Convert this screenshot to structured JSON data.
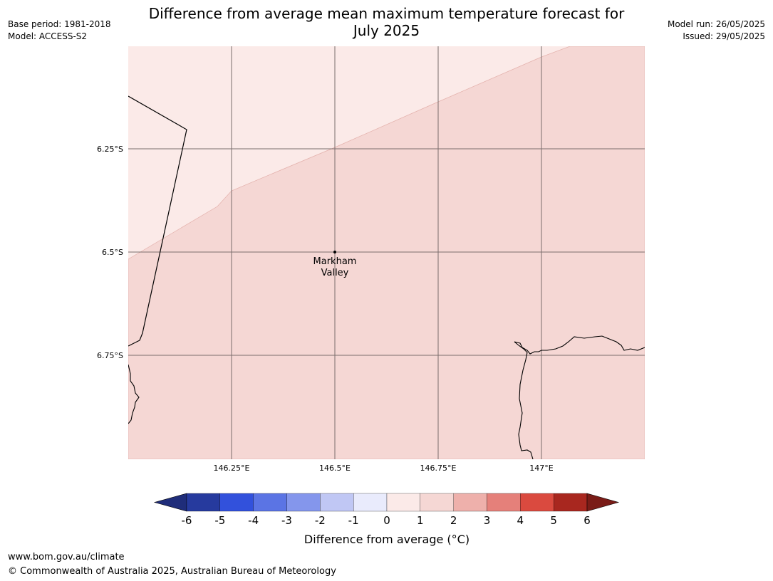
{
  "header": {
    "title_line1": "Difference from average mean maximum temperature forecast for",
    "title_line2": "July 2025",
    "base_period": "Base period: 1981-2018",
    "model": "Model: ACCESS-S2",
    "model_run": "Model run: 26/05/2025",
    "issued": "Issued: 29/05/2025"
  },
  "map": {
    "lat_labels": [
      "6.25°S",
      "6.5°S",
      "6.75°S"
    ],
    "lon_labels": [
      "146.25°E",
      "146.5°E",
      "146.75°E",
      "147°E"
    ],
    "place": {
      "name_line1": "Markham",
      "name_line2": "Valley",
      "lat": -6.5,
      "lon": 146.5
    },
    "zones": [
      {
        "range": "0 to 1",
        "color": "#fbeae8"
      },
      {
        "range": "1 to 2",
        "color": "#f5d7d4"
      }
    ]
  },
  "colorbar": {
    "label": "Difference from average (°C)",
    "ticks": [
      "-6",
      "-5",
      "-4",
      "-3",
      "-2",
      "-1",
      "0",
      "1",
      "2",
      "3",
      "4",
      "5",
      "6"
    ],
    "colors": [
      "#263a9e",
      "#3251dc",
      "#5b74e4",
      "#8496ec",
      "#c0c7f4",
      "#e9ebfc",
      "#fbeae8",
      "#f5d7d4",
      "#eeb0ab",
      "#e5807a",
      "#da4a3f",
      "#a8271f"
    ],
    "under_color": "#1f2d7a",
    "over_color": "#7a1c17"
  },
  "footer": {
    "url": "www.bom.gov.au/climate",
    "copyright": "© Commonwealth of Australia 2025, Australian Bureau of Meteorology"
  }
}
